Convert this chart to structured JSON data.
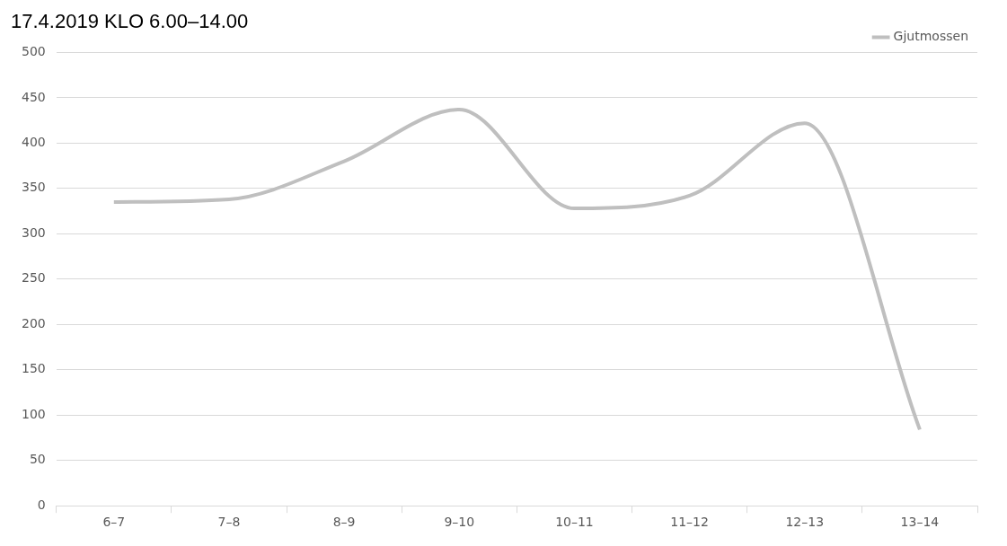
{
  "chart_data": {
    "type": "line",
    "title": "17.4.2019 KLO 6.00–14.00",
    "categories": [
      "6–7",
      "7–8",
      "8–9",
      "9–10",
      "10–11",
      "11–12",
      "12–13",
      "13–14"
    ],
    "series": [
      {
        "name": "Gjutmossen",
        "color": "#bfbfbf",
        "values": [
          335,
          338,
          380,
          437,
          328,
          342,
          422,
          84
        ]
      }
    ],
    "ylim": [
      0,
      500
    ],
    "yticks": [
      0,
      50,
      100,
      150,
      200,
      250,
      300,
      350,
      400,
      450,
      500
    ],
    "grid": "y",
    "legend": "top right",
    "marker": "none",
    "line_style": "solid"
  }
}
